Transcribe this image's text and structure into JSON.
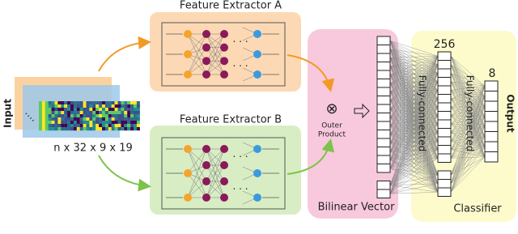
{
  "input": {
    "label": "Input",
    "shape": "n x 32 x 9 x 19"
  },
  "extractors": [
    {
      "title": "Feature Extractor A"
    },
    {
      "title": "Feature Extractor B"
    }
  ],
  "outer_product": {
    "symbol": "⊗",
    "label": [
      "Outer",
      "Product"
    ]
  },
  "bilinear": {
    "label": "Bilinear Vector"
  },
  "classifier": {
    "label": "Classifier",
    "hidden_size": 256,
    "layers": [
      "Fully-connected",
      "Fully-connected"
    ],
    "output_size": 8,
    "output_label": "Output"
  }
}
